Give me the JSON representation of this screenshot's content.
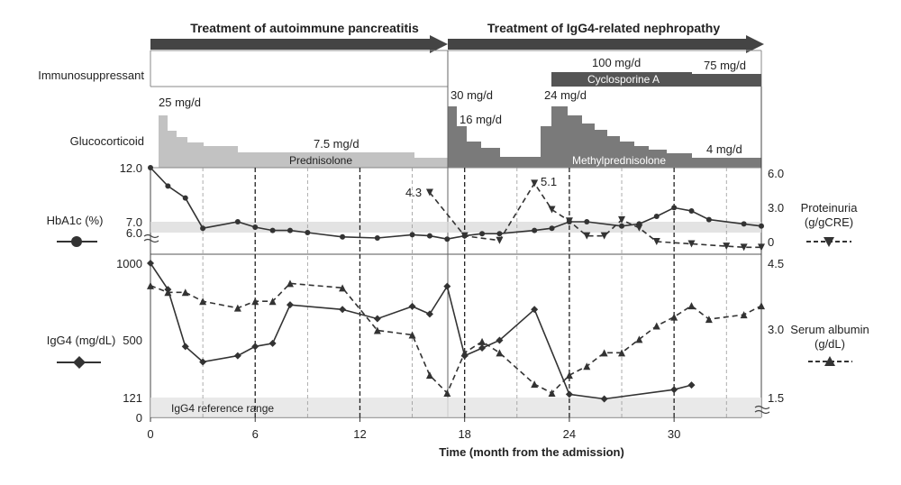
{
  "headers": {
    "phase1": "Treatment of autoimmune pancreatitis",
    "phase2": "Treatment of IgG4-related nephropathy"
  },
  "labels": {
    "immunosuppressant": "Immunosuppressant",
    "glucocorticoid": "Glucocorticoid",
    "hba1c": "HbA1c (%)",
    "proteinuria_1": "Proteinuria",
    "proteinuria_2": "(g/gCRE)",
    "igg4": "IgG4 (mg/dL)",
    "albumin_1": "Serum albumin",
    "albumin_2": "(g/dL)",
    "ref_range": "IgG4 reference range",
    "prednisolone": "Prednisolone",
    "methylpred": "Methylprednisolone",
    "cyclosporine": "Cyclosporine A",
    "dose_25": "25 mg/d",
    "dose_7_5": "7.5 mg/d",
    "dose_30": "30 mg/d",
    "dose_16": "16 mg/d",
    "dose_24": "24 mg/d",
    "dose_4": "4 mg/d",
    "dose_100": "100 mg/d",
    "dose_75": "75 mg/d",
    "ann_4_3": "4.3",
    "ann_5_1": "5.1"
  },
  "chart_data": {
    "type": "line",
    "xlabel": "Time (month from the admission)",
    "xticks": [
      0,
      6,
      12,
      18,
      24,
      30
    ],
    "xlim": [
      0,
      35
    ],
    "hba1c": {
      "yticks": [
        "12.0",
        "7.0",
        "6.0"
      ],
      "x": [
        0,
        1,
        2,
        3,
        5,
        6,
        7,
        8,
        9,
        11,
        13,
        15,
        16,
        17,
        18,
        19,
        20,
        22,
        23,
        24,
        25,
        27,
        28,
        29,
        30,
        31,
        32,
        34,
        35
      ],
      "y": [
        12.0,
        10.3,
        9.2,
        6.4,
        7.0,
        6.5,
        6.2,
        6.2,
        6.0,
        5.6,
        5.5,
        5.8,
        5.7,
        5.4,
        5.7,
        5.9,
        5.9,
        6.2,
        6.4,
        7.0,
        7.0,
        6.6,
        6.8,
        7.5,
        8.3,
        8.0,
        7.2,
        6.8,
        6.6
      ]
    },
    "proteinuria": {
      "yticks": [
        "6.0",
        "3.0",
        "0"
      ],
      "x": [
        16,
        18,
        20,
        22,
        23,
        24,
        25,
        26,
        27,
        28,
        29,
        31,
        33,
        34,
        35
      ],
      "y": [
        4.3,
        0.5,
        0.1,
        5.1,
        2.8,
        1.8,
        0.5,
        0.5,
        1.9,
        1.2,
        0.0,
        -0.2,
        -0.4,
        -0.5,
        -0.5
      ]
    },
    "igg4": {
      "yticks": [
        "1000",
        "500",
        "121",
        "0"
      ],
      "x": [
        0,
        1,
        2,
        3,
        5,
        6,
        7,
        8,
        11,
        13,
        15,
        16,
        17,
        18,
        19,
        20,
        22,
        24,
        26,
        30,
        31
      ],
      "y": [
        1000,
        830,
        460,
        360,
        400,
        460,
        480,
        730,
        700,
        640,
        720,
        670,
        850,
        400,
        450,
        500,
        700,
        150,
        120,
        180,
        210
      ]
    },
    "albumin": {
      "yticks": [
        "4.5",
        "3.0",
        "1.5"
      ],
      "x": [
        0,
        1,
        2,
        3,
        5,
        6,
        7,
        8,
        11,
        13,
        15,
        16,
        17,
        18,
        19,
        20,
        22,
        23,
        24,
        25,
        26,
        27,
        28,
        29,
        30,
        31,
        32,
        34,
        35
      ],
      "y": [
        4.0,
        3.85,
        3.85,
        3.65,
        3.5,
        3.65,
        3.65,
        4.05,
        3.95,
        3.0,
        2.9,
        2.0,
        1.6,
        2.5,
        2.75,
        2.5,
        1.8,
        1.6,
        2.0,
        2.2,
        2.5,
        2.5,
        2.8,
        3.1,
        3.3,
        3.55,
        3.25,
        3.35,
        3.55
      ]
    }
  }
}
